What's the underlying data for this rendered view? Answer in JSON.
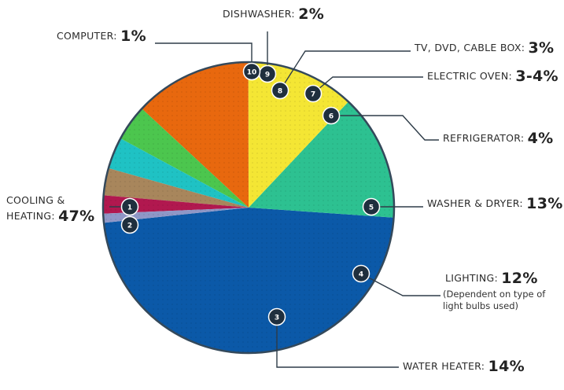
{
  "chart_data": {
    "type": "pie",
    "categories": [
      "COOLING & HEATING",
      "WATER HEATER",
      "LIGHTING",
      "WASHER & DRYER",
      "REFRIGERATOR",
      "ELECTRIC OVEN",
      "TV, DVD, CABLE BOX",
      "DISHWASHER",
      "COMPUTER"
    ],
    "values": [
      47,
      14,
      12,
      13,
      4,
      3.5,
      3,
      2,
      1
    ],
    "value_labels": [
      "47%",
      "14%",
      "12%",
      "13%",
      "4%",
      "3-4%",
      "3%",
      "2%",
      "1%"
    ],
    "badges": [
      [
        "1",
        "2"
      ],
      [
        "3"
      ],
      [
        "4"
      ],
      [
        "5"
      ],
      [
        "6"
      ],
      [
        "7"
      ],
      [
        "8"
      ],
      [
        "9"
      ],
      [
        "10"
      ]
    ],
    "notes": [
      "",
      "",
      "(Dependent on type of|light bulbs used)",
      "",
      "",
      "",
      "",
      "",
      ""
    ],
    "label_lines": [
      [
        "COOLING &",
        "HEATING:"
      ],
      [
        "WATER HEATER:"
      ],
      [
        "LIGHTING:"
      ],
      [
        "WASHER & DRYER:"
      ],
      [
        "REFRIGERATOR:"
      ],
      [
        "ELECTRIC OVEN:"
      ],
      [
        "TV, DVD, CABLE BOX:"
      ],
      [
        "DISHWASHER:"
      ],
      [
        "COMPUTER:"
      ]
    ],
    "colors": [
      "#0b59a8",
      "#2dc191",
      "#f4e634",
      "#e8680e",
      "#4cc64e",
      "#1fc2c4",
      "#a8865c",
      "#b1184f",
      "#8f97c7"
    ],
    "title": "",
    "legend": "none"
  }
}
